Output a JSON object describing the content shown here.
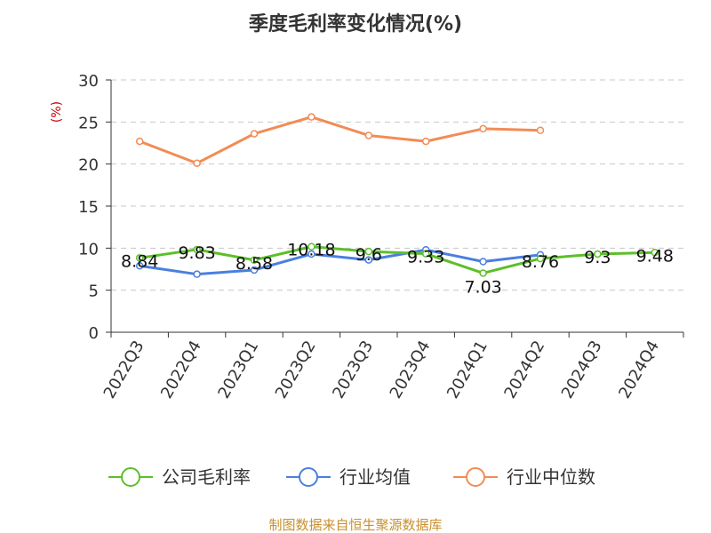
{
  "chart_data": {
    "type": "line",
    "title": "季度毛利率变化情况(%)",
    "ylabel": "(%)",
    "xlabel": "",
    "ylim": [
      0,
      30
    ],
    "yticks": [
      0,
      5,
      10,
      15,
      20,
      25,
      30
    ],
    "grid": true,
    "legend_position": "bottom",
    "categories": [
      "2022Q3",
      "2022Q4",
      "2023Q1",
      "2023Q2",
      "2023Q3",
      "2023Q4",
      "2024Q1",
      "2024Q2",
      "2024Q3",
      "2024Q4"
    ],
    "series": [
      {
        "name": "公司毛利率",
        "color": "#5cbf2a",
        "values": [
          8.84,
          9.83,
          8.58,
          10.18,
          9.6,
          9.33,
          7.03,
          8.76,
          9.3,
          9.48
        ],
        "show_labels": true
      },
      {
        "name": "行业均值",
        "color": "#4a7fe0",
        "values": [
          7.9,
          6.9,
          7.4,
          9.3,
          8.6,
          9.8,
          8.4,
          9.2,
          null,
          null
        ],
        "show_labels": false
      },
      {
        "name": "行业中位数",
        "color": "#f28c55",
        "values": [
          22.7,
          20.1,
          23.6,
          25.6,
          23.4,
          22.7,
          24.2,
          24.0,
          null,
          null
        ],
        "show_labels": false
      }
    ]
  },
  "footer": {
    "source": "制图数据来自恒生聚源数据库"
  }
}
